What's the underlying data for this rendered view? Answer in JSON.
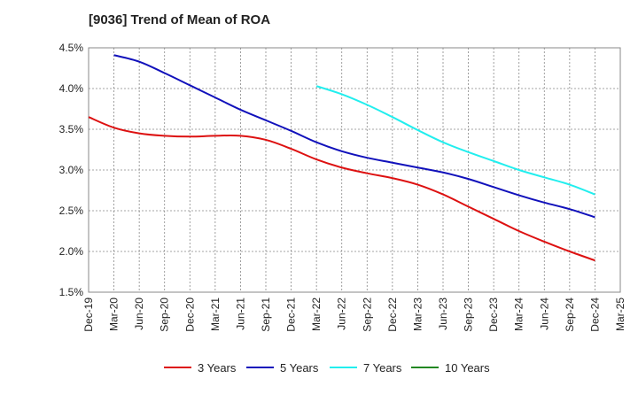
{
  "chart_data": {
    "type": "line",
    "title": "[9036]  Trend of Mean of ROA",
    "xlabel": "",
    "ylabel": "",
    "ylim": [
      1.5,
      4.5
    ],
    "grid": true,
    "legend_position": "bottom",
    "x": [
      "Dec-19",
      "Mar-20",
      "Jun-20",
      "Sep-20",
      "Dec-20",
      "Mar-21",
      "Jun-21",
      "Sep-21",
      "Dec-21",
      "Mar-22",
      "Jun-22",
      "Sep-22",
      "Dec-22",
      "Mar-23",
      "Jun-23",
      "Sep-23",
      "Dec-23",
      "Mar-24",
      "Jun-24",
      "Sep-24",
      "Dec-24",
      "Mar-25"
    ],
    "yticks": [
      "1.5%",
      "2.0%",
      "2.5%",
      "3.0%",
      "3.5%",
      "4.0%",
      "4.5%"
    ],
    "ytick_values": [
      1.5,
      2.0,
      2.5,
      3.0,
      3.5,
      4.0,
      4.5
    ],
    "series": [
      {
        "name": "3 Years",
        "color": "#dd1111",
        "values": [
          3.65,
          3.52,
          3.45,
          3.42,
          3.41,
          3.42,
          3.42,
          3.37,
          3.26,
          3.13,
          3.03,
          2.96,
          2.9,
          2.82,
          2.7,
          2.55,
          2.4,
          2.25,
          2.12,
          2.0,
          1.89,
          null
        ]
      },
      {
        "name": "5 Years",
        "color": "#1111bb",
        "values": [
          null,
          4.41,
          4.33,
          4.19,
          4.04,
          3.89,
          3.74,
          3.61,
          3.48,
          3.34,
          3.23,
          3.15,
          3.09,
          3.03,
          2.97,
          2.89,
          2.79,
          2.69,
          2.6,
          2.52,
          2.42,
          null
        ]
      },
      {
        "name": "7 Years",
        "color": "#22eeee",
        "values": [
          null,
          null,
          null,
          null,
          null,
          null,
          null,
          null,
          null,
          4.03,
          3.93,
          3.8,
          3.65,
          3.49,
          3.34,
          3.22,
          3.11,
          3.0,
          2.91,
          2.82,
          2.7,
          null
        ]
      },
      {
        "name": "10 Years",
        "color": "#228822",
        "values": [
          null,
          null,
          null,
          null,
          null,
          null,
          null,
          null,
          null,
          null,
          null,
          null,
          null,
          null,
          null,
          null,
          null,
          null,
          null,
          null,
          null,
          null
        ]
      }
    ]
  }
}
